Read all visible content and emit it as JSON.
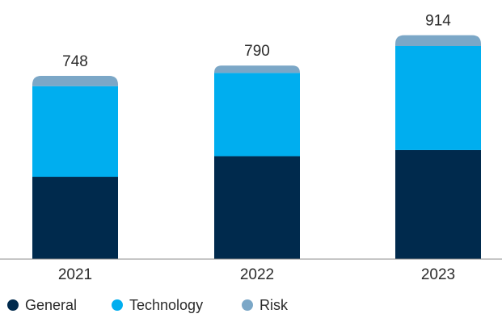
{
  "chart_data": {
    "type": "bar",
    "stacked": true,
    "categories": [
      "2021",
      "2022",
      "2023"
    ],
    "series": [
      {
        "name": "General",
        "values": [
          336,
          420,
          445
        ],
        "color": "#002a4d"
      },
      {
        "name": "Technology",
        "values": [
          370,
          340,
          425
        ],
        "color": "#00aeef"
      },
      {
        "name": "Risk",
        "values": [
          42,
          30,
          44
        ],
        "color": "#7ba7c7"
      }
    ],
    "totals": [
      "748",
      "790",
      "914"
    ],
    "title": "",
    "xlabel": "",
    "ylabel": "",
    "ylim": [
      0,
      1000
    ],
    "grid": false,
    "legend_position": "bottom-left"
  }
}
